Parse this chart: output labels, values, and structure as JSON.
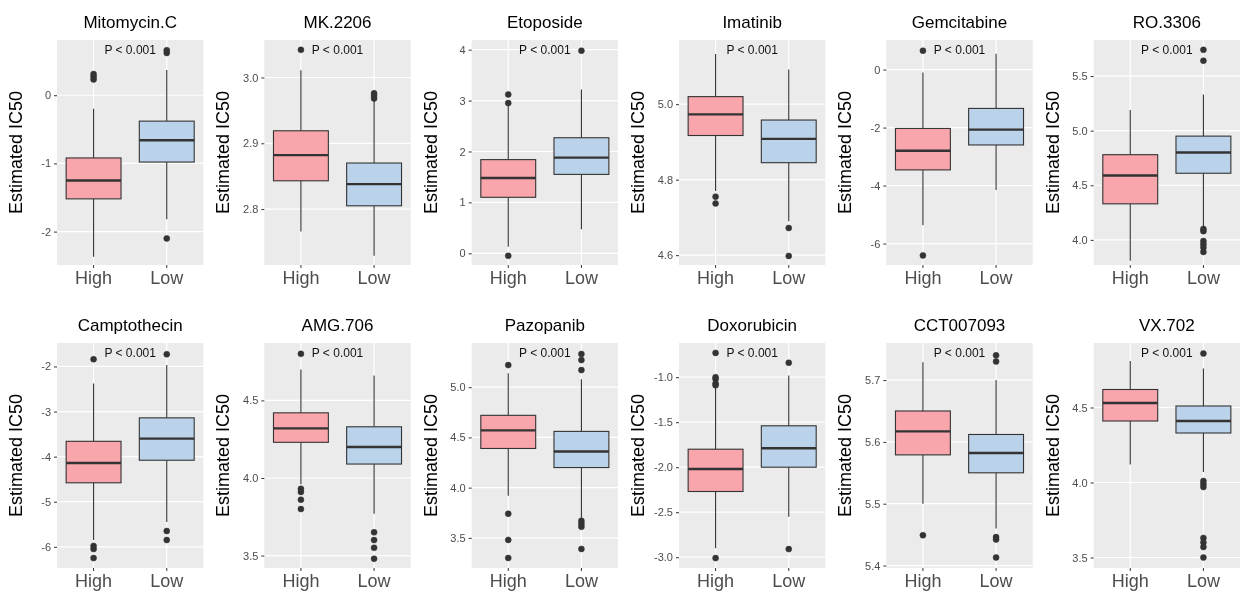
{
  "chart_data": [
    {
      "type": "box",
      "title": "Mitomycin.C",
      "ylabel": "Estimated IC50",
      "categories": [
        "High",
        "Low"
      ],
      "colors": [
        "#f8a5ac",
        "#bbd3ea"
      ],
      "ylim": [
        -2.49,
        0.81
      ],
      "yticks": [
        -2,
        -1,
        0
      ],
      "grid": true,
      "annotations": [
        "P < 0.001"
      ],
      "boxes": [
        {
          "low": -2.37,
          "q1": -1.52,
          "median": -1.25,
          "q3": -0.92,
          "high": -0.2,
          "outliers": [
            0.23,
            0.27,
            0.31
          ]
        },
        {
          "low": -1.82,
          "q1": -0.98,
          "median": -0.66,
          "q3": -0.38,
          "high": 0.37,
          "outliers": [
            0.62,
            0.66,
            -2.1
          ]
        }
      ]
    },
    {
      "type": "box",
      "title": "MK.2206",
      "ylabel": "Estimated IC50",
      "categories": [
        "High",
        "Low"
      ],
      "colors": [
        "#f8a5ac",
        "#bbd3ea"
      ],
      "ylim": [
        2.715,
        3.057
      ],
      "yticks": [
        2.8,
        2.9,
        {
          "value": 3,
          "label": "3.0"
        }
      ],
      "grid": true,
      "annotations": [
        "P < 0.001"
      ],
      "boxes": [
        {
          "low": 2.766,
          "q1": 2.843,
          "median": 2.882,
          "q3": 2.919,
          "high": 3.011,
          "outliers": [
            3.042
          ]
        },
        {
          "low": 2.729,
          "q1": 2.805,
          "median": 2.838,
          "q3": 2.87,
          "high": 2.965,
          "outliers": [
            2.968,
            2.972,
            2.976
          ]
        }
      ]
    },
    {
      "type": "box",
      "title": "Etoposide",
      "ylabel": "Estimated IC50",
      "categories": [
        "High",
        "Low"
      ],
      "colors": [
        "#f8a5ac",
        "#bbd3ea"
      ],
      "ylim": [
        -0.23,
        4.19
      ],
      "yticks": [
        0,
        1,
        2,
        3,
        4
      ],
      "grid": true,
      "annotations": [
        "P < 0.001"
      ],
      "boxes": [
        {
          "low": 0.13,
          "q1": 1.1,
          "median": 1.48,
          "q3": 1.84,
          "high": 2.9,
          "outliers": [
            2.95,
            3.12,
            -0.05
          ]
        },
        {
          "low": 0.47,
          "q1": 1.55,
          "median": 1.88,
          "q3": 2.27,
          "high": 3.22,
          "outliers": [
            3.98
          ]
        }
      ]
    },
    {
      "type": "box",
      "title": "Imatinib",
      "ylabel": "Estimated IC50",
      "categories": [
        "High",
        "Low"
      ],
      "colors": [
        "#f8a5ac",
        "#bbd3ea"
      ],
      "ylim": [
        4.574,
        5.17
      ],
      "yticks": [
        4.6,
        4.8,
        {
          "value": 5,
          "label": "5.0"
        }
      ],
      "grid": true,
      "annotations": [
        "P < 0.001"
      ],
      "boxes": [
        {
          "low": 4.77,
          "q1": 4.917,
          "median": 4.973,
          "q3": 5.02,
          "high": 5.133,
          "outliers": [
            4.755,
            4.737
          ]
        },
        {
          "low": 4.69,
          "q1": 4.845,
          "median": 4.908,
          "q3": 4.958,
          "high": 5.092,
          "outliers": [
            4.672,
            4.598
          ]
        }
      ]
    },
    {
      "type": "box",
      "title": "Gemcitabine",
      "ylabel": "Estimated IC50",
      "categories": [
        "High",
        "Low"
      ],
      "colors": [
        "#f8a5ac",
        "#bbd3ea"
      ],
      "ylim": [
        -6.74,
        1.02
      ],
      "yticks": [
        -6,
        -4,
        -2,
        0
      ],
      "grid": true,
      "annotations": [
        "P < 0.001"
      ],
      "boxes": [
        {
          "low": -5.37,
          "q1": -3.46,
          "median": -2.8,
          "q3": -2.03,
          "high": -0.1,
          "outliers": [
            0.65,
            -6.41
          ]
        },
        {
          "low": -4.15,
          "q1": -2.6,
          "median": -2.07,
          "q3": -1.34,
          "high": 0.55
        }
      ]
    },
    {
      "type": "box",
      "title": "RO.3306",
      "ylabel": "Estimated IC50",
      "categories": [
        "High",
        "Low"
      ],
      "colors": [
        "#f8a5ac",
        "#bbd3ea"
      ],
      "ylim": [
        3.77,
        5.83
      ],
      "yticks": [
        {
          "value": 4,
          "label": "4.0"
        },
        4.5,
        {
          "value": 5,
          "label": "5.0"
        },
        5.5
      ],
      "grid": true,
      "annotations": [
        "P < 0.001"
      ],
      "boxes": [
        {
          "low": 3.81,
          "q1": 4.33,
          "median": 4.59,
          "q3": 4.78,
          "high": 5.19
        },
        {
          "low": 4.12,
          "q1": 4.61,
          "median": 4.8,
          "q3": 4.95,
          "high": 5.33,
          "outliers": [
            5.74,
            5.64,
            4.1,
            4.08,
            3.99,
            3.96,
            3.93,
            3.89
          ]
        }
      ]
    },
    {
      "type": "box",
      "title": "Camptothecin",
      "ylabel": "Estimated IC50",
      "categories": [
        "High",
        "Low"
      ],
      "colors": [
        "#f8a5ac",
        "#bbd3ea"
      ],
      "ylim": [
        -6.47,
        -1.48
      ],
      "yticks": [
        -6,
        -5,
        -4,
        -3,
        -2
      ],
      "grid": true,
      "annotations": [
        "P < 0.001"
      ],
      "boxes": [
        {
          "low": -5.85,
          "q1": -4.58,
          "median": -4.14,
          "q3": -3.66,
          "high": -2.38,
          "outliers": [
            -1.84,
            -5.98,
            -6.05,
            -6.25
          ]
        },
        {
          "low": -5.45,
          "q1": -4.08,
          "median": -3.6,
          "q3": -3.14,
          "high": -1.97,
          "outliers": [
            -1.73,
            -5.65,
            -5.85
          ]
        }
      ]
    },
    {
      "type": "box",
      "title": "AMG.706",
      "ylabel": "Estimated IC50",
      "categories": [
        "High",
        "Low"
      ],
      "colors": [
        "#f8a5ac",
        "#bbd3ea"
      ],
      "ylim": [
        3.42,
        4.87
      ],
      "yticks": [
        3.5,
        {
          "value": 4,
          "label": "4.0"
        },
        4.5
      ],
      "grid": true,
      "annotations": [
        "P < 0.001"
      ],
      "boxes": [
        {
          "low": 3.96,
          "q1": 4.23,
          "median": 4.32,
          "q3": 4.42,
          "high": 4.7,
          "outliers": [
            4.8,
            3.93,
            3.91,
            3.86,
            3.8
          ]
        },
        {
          "low": 3.77,
          "q1": 4.09,
          "median": 4.2,
          "q3": 4.33,
          "high": 4.66,
          "outliers": [
            3.65,
            3.6,
            3.55,
            3.48
          ]
        }
      ]
    },
    {
      "type": "box",
      "title": "Pazopanib",
      "ylabel": "Estimated IC50",
      "categories": [
        "High",
        "Low"
      ],
      "colors": [
        "#f8a5ac",
        "#bbd3ea"
      ],
      "ylim": [
        3.2,
        5.44
      ],
      "yticks": [
        3.5,
        {
          "value": 4,
          "label": "4.0"
        },
        4.5,
        {
          "value": 5,
          "label": "5.0"
        }
      ],
      "grid": true,
      "annotations": [
        "P < 0.001"
      ],
      "boxes": [
        {
          "low": 3.92,
          "q1": 4.39,
          "median": 4.57,
          "q3": 4.72,
          "high": 5.14,
          "outliers": [
            5.22,
            3.74,
            3.48,
            3.3
          ]
        },
        {
          "low": 3.7,
          "q1": 4.2,
          "median": 4.36,
          "q3": 4.56,
          "high": 5.08,
          "outliers": [
            5.33,
            5.27,
            5.17,
            3.67,
            3.64,
            3.61,
            3.39
          ]
        }
      ]
    },
    {
      "type": "box",
      "title": "Doxorubicin",
      "ylabel": "Estimated IC50",
      "categories": [
        "High",
        "Low"
      ],
      "colors": [
        "#f8a5ac",
        "#bbd3ea"
      ],
      "ylim": [
        -3.12,
        -0.62
      ],
      "yticks": [
        {
          "value": -3,
          "label": "-3.0"
        },
        -2.5,
        {
          "value": -2,
          "label": "-2.0"
        },
        -1.5,
        {
          "value": -1,
          "label": "-1.0"
        }
      ],
      "grid": true,
      "annotations": [
        "P < 0.001"
      ],
      "boxes": [
        {
          "low": -2.9,
          "q1": -2.27,
          "median": -2.02,
          "q3": -1.8,
          "high": -1.12,
          "outliers": [
            -0.73,
            -1.0,
            -1.02,
            -1.07,
            -1.09,
            -3.01
          ]
        },
        {
          "low": -2.55,
          "q1": -2.0,
          "median": -1.79,
          "q3": -1.54,
          "high": -0.98,
          "outliers": [
            -0.84,
            -2.91
          ]
        }
      ]
    },
    {
      "type": "box",
      "title": "CCT007093",
      "ylabel": "Estimated IC50",
      "categories": [
        "High",
        "Low"
      ],
      "colors": [
        "#f8a5ac",
        "#bbd3ea"
      ],
      "ylim": [
        5.396,
        5.76
      ],
      "yticks": [
        5.4,
        5.5,
        5.6,
        5.7
      ],
      "grid": true,
      "annotations": [
        "P < 0.001"
      ],
      "boxes": [
        {
          "low": 5.5,
          "q1": 5.579,
          "median": 5.617,
          "q3": 5.65,
          "high": 5.729,
          "outliers": [
            5.449
          ]
        },
        {
          "low": 5.46,
          "q1": 5.55,
          "median": 5.582,
          "q3": 5.612,
          "high": 5.7,
          "outliers": [
            5.74,
            5.73,
            5.446,
            5.442,
            5.413
          ]
        }
      ]
    },
    {
      "type": "box",
      "title": "VX.702",
      "ylabel": "Estimated IC50",
      "categories": [
        "High",
        "Low"
      ],
      "colors": [
        "#f8a5ac",
        "#bbd3ea"
      ],
      "ylim": [
        3.43,
        4.93
      ],
      "yticks": [
        3.5,
        {
          "value": 4,
          "label": "4.0"
        },
        4.5
      ],
      "grid": true,
      "annotations": [
        "P < 0.001"
      ],
      "boxes": [
        {
          "low": 4.12,
          "q1": 4.41,
          "median": 4.53,
          "q3": 4.62,
          "high": 4.81
        },
        {
          "low": 4.07,
          "q1": 4.33,
          "median": 4.41,
          "q3": 4.51,
          "high": 4.76,
          "outliers": [
            4.86,
            4.01,
            3.99,
            3.97,
            3.63,
            3.6,
            3.57,
            3.5
          ]
        }
      ]
    }
  ]
}
